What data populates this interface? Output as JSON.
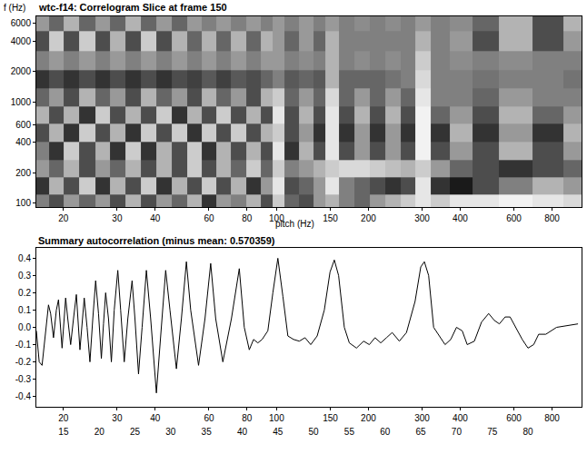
{
  "chart_data": [
    {
      "type": "heatmap",
      "title": "wtc-f14: Correlogram Slice at frame 150",
      "xlabel": "pitch (Hz)",
      "ylabel": "f (Hz)",
      "log": true,
      "grid": false,
      "x": [
        17,
        19,
        21,
        24,
        27,
        30,
        34,
        38,
        43,
        48,
        54,
        60,
        67,
        75,
        84,
        94,
        100,
        112,
        125,
        140,
        150,
        170,
        190,
        215,
        240,
        270,
        300,
        340,
        400,
        480,
        600,
        800,
        950
      ],
      "y": [
        100,
        150,
        220,
        330,
        500,
        750,
        1100,
        1700,
        2500,
        4000,
        6200
      ],
      "z": [
        [
          0.5,
          0.3,
          0.6,
          0.4,
          0.6,
          0.3,
          0.7,
          0.3,
          0.6,
          0.4,
          0.7,
          0.2,
          0.6,
          0.5,
          0.7,
          0.3,
          0.8,
          0.4,
          0.3,
          0.6,
          0.7,
          0.5,
          0.4,
          0.6,
          0.7,
          0.8,
          0.9,
          0.8,
          0.9,
          0.9,
          0.95,
          0.9,
          0.85
        ],
        [
          0.2,
          0.7,
          0.3,
          0.8,
          0.2,
          0.7,
          0.3,
          0.8,
          0.2,
          0.7,
          0.3,
          0.8,
          0.3,
          0.7,
          0.2,
          0.6,
          0.9,
          0.3,
          0.4,
          0.6,
          0.9,
          0.5,
          0.4,
          0.3,
          0.2,
          0.3,
          0.9,
          0.2,
          0.1,
          0.3,
          0.5,
          0.7,
          0.6
        ],
        [
          0.6,
          0.4,
          0.7,
          0.3,
          0.6,
          0.4,
          0.7,
          0.3,
          0.7,
          0.3,
          0.8,
          0.3,
          0.7,
          0.4,
          0.8,
          0.4,
          0.8,
          0.5,
          0.6,
          0.7,
          0.8,
          0.85,
          0.85,
          0.8,
          0.75,
          0.7,
          0.8,
          0.6,
          0.4,
          0.3,
          0.2,
          0.3,
          0.4
        ],
        [
          0.5,
          0.2,
          0.8,
          0.3,
          0.7,
          0.2,
          0.8,
          0.2,
          0.7,
          0.3,
          0.8,
          0.2,
          0.7,
          0.3,
          0.7,
          0.3,
          0.9,
          0.2,
          0.7,
          0.3,
          0.9,
          0.3,
          0.6,
          0.3,
          0.6,
          0.3,
          0.95,
          0.3,
          0.6,
          0.3,
          0.7,
          0.3,
          0.6
        ],
        [
          0.3,
          0.7,
          0.2,
          0.8,
          0.3,
          0.7,
          0.2,
          0.8,
          0.3,
          0.8,
          0.2,
          0.8,
          0.3,
          0.8,
          0.3,
          0.7,
          0.8,
          0.3,
          0.6,
          0.2,
          0.9,
          0.2,
          0.6,
          0.2,
          0.6,
          0.2,
          0.95,
          0.2,
          0.7,
          0.2,
          0.6,
          0.2,
          0.7
        ],
        [
          0.7,
          0.3,
          0.7,
          0.2,
          0.8,
          0.3,
          0.7,
          0.3,
          0.8,
          0.2,
          0.7,
          0.3,
          0.8,
          0.3,
          0.7,
          0.3,
          0.9,
          0.3,
          0.7,
          0.3,
          0.9,
          0.3,
          0.7,
          0.3,
          0.7,
          0.3,
          0.95,
          0.4,
          0.6,
          0.3,
          0.7,
          0.4,
          0.6
        ],
        [
          0.4,
          0.6,
          0.3,
          0.7,
          0.4,
          0.6,
          0.3,
          0.7,
          0.4,
          0.6,
          0.3,
          0.7,
          0.4,
          0.6,
          0.3,
          0.7,
          0.8,
          0.4,
          0.6,
          0.4,
          0.85,
          0.4,
          0.6,
          0.4,
          0.6,
          0.4,
          0.9,
          0.5,
          0.5,
          0.4,
          0.6,
          0.5,
          0.5
        ],
        [
          0.2,
          0.3,
          0.2,
          0.3,
          0.2,
          0.3,
          0.2,
          0.3,
          0.2,
          0.3,
          0.25,
          0.35,
          0.25,
          0.35,
          0.3,
          0.4,
          0.5,
          0.35,
          0.4,
          0.35,
          0.7,
          0.4,
          0.4,
          0.4,
          0.45,
          0.5,
          0.85,
          0.5,
          0.5,
          0.45,
          0.5,
          0.5,
          0.45
        ],
        [
          0.5,
          0.6,
          0.5,
          0.6,
          0.5,
          0.6,
          0.5,
          0.6,
          0.5,
          0.6,
          0.5,
          0.6,
          0.5,
          0.6,
          0.5,
          0.6,
          0.6,
          0.5,
          0.55,
          0.5,
          0.7,
          0.5,
          0.55,
          0.5,
          0.55,
          0.5,
          0.8,
          0.5,
          0.55,
          0.5,
          0.55,
          0.5,
          0.5
        ],
        [
          0.3,
          0.8,
          0.3,
          0.8,
          0.3,
          0.7,
          0.3,
          0.8,
          0.3,
          0.7,
          0.4,
          0.7,
          0.4,
          0.7,
          0.4,
          0.7,
          0.6,
          0.4,
          0.6,
          0.4,
          0.7,
          0.5,
          0.5,
          0.5,
          0.5,
          0.5,
          0.7,
          0.5,
          0.6,
          0.3,
          0.7,
          0.3,
          0.6
        ],
        [
          0.6,
          0.4,
          0.7,
          0.4,
          0.6,
          0.4,
          0.7,
          0.4,
          0.6,
          0.4,
          0.6,
          0.5,
          0.6,
          0.5,
          0.6,
          0.5,
          0.6,
          0.5,
          0.6,
          0.5,
          0.6,
          0.5,
          0.55,
          0.5,
          0.55,
          0.5,
          0.6,
          0.5,
          0.55,
          0.4,
          0.7,
          0.3,
          0.7
        ]
      ],
      "zlim": [
        0,
        1
      ],
      "xlim": [
        16.3,
        1000
      ],
      "ylim": [
        92,
        7000
      ],
      "xticks": [
        20,
        30,
        40,
        60,
        80,
        100,
        150,
        200,
        300,
        400,
        600,
        800
      ],
      "yticks": [
        100,
        200,
        400,
        600,
        1000,
        2000,
        4000,
        6000
      ]
    },
    {
      "type": "line",
      "title": "Summary autocorrelation (minus mean: 0.570359)",
      "color": "#000000",
      "grid": false,
      "x": [
        11.2,
        11.6,
        12.0,
        12.4,
        12.9,
        13.2,
        13.6,
        14.0,
        14.3,
        14.8,
        15.3,
        15.6,
        16.0,
        16.4,
        16.8,
        17.3,
        17.9,
        18.3,
        18.7,
        19.1,
        19.5,
        19.9,
        20.3,
        20.6,
        20.9,
        21.3,
        21.7,
        22.1,
        22.6,
        23.0,
        23.5,
        24.0,
        24.6,
        25.0,
        25.5,
        26.0,
        26.6,
        27.2,
        28.0,
        28.6,
        29.3,
        29.9,
        30.8,
        31.5,
        32.2,
        32.8,
        33.9,
        34.8,
        35.6,
        36.3,
        37.3,
        38.5,
        39.6,
        40.3,
        41.0,
        41.6,
        42.2,
        42.8,
        43.6,
        44.3,
        45.0,
        45.7,
        46.4,
        47.2,
        48.0,
        48.8,
        49.6,
        50.5,
        51.5,
        52.3,
        52.9,
        53.5,
        54.3,
        55.0,
        56.0,
        57.0,
        57.8,
        58.6,
        59.4,
        60.2,
        61.0,
        62.0,
        63.0,
        64.2,
        65.0,
        65.5,
        66.1,
        66.8,
        67.6,
        68.4,
        69.2,
        70.0,
        70.8,
        71.5,
        72.5,
        73.5,
        74.5,
        75.3,
        76.0,
        76.8,
        77.5,
        78.3,
        79.2,
        80.0,
        80.8,
        81.5,
        82.5,
        84.0,
        85.5,
        87.0
      ],
      "values": [
        -0.02,
        -0.2,
        -0.22,
        -0.05,
        0.13,
        0.08,
        -0.06,
        0.1,
        0.16,
        -0.12,
        0.17,
        0.05,
        -0.1,
        0.05,
        0.19,
        -0.13,
        0.17,
        0,
        -0.2,
        0.05,
        0.27,
        0.08,
        -0.18,
        0.02,
        0.2,
        0.05,
        -0.2,
        0.1,
        0.33,
        0.1,
        -0.2,
        0.05,
        0.27,
        0.05,
        -0.27,
        0,
        0.33,
        0.05,
        -0.38,
        -0.05,
        0.33,
        0.1,
        -0.24,
        0.05,
        0.38,
        0.1,
        -0.22,
        0.05,
        0.37,
        0.05,
        -0.2,
        0.05,
        0.34,
        0,
        -0.13,
        -0.07,
        -0.09,
        -0.07,
        -0.02,
        0.2,
        0.4,
        0.18,
        -0.05,
        -0.07,
        -0.08,
        -0.06,
        -0.1,
        -0.05,
        0.1,
        0.32,
        0.39,
        0.3,
        0,
        -0.09,
        -0.12,
        -0.08,
        -0.1,
        -0.06,
        -0.09,
        -0.06,
        -0.03,
        -0.08,
        -0.03,
        0.15,
        0.35,
        0.38,
        0.3,
        0,
        -0.05,
        -0.1,
        -0.07,
        0,
        -0.02,
        -0.1,
        -0.08,
        0.03,
        0.08,
        0.04,
        0.02,
        0.06,
        0.06,
        0,
        -0.07,
        -0.12,
        -0.1,
        -0.04,
        -0.04,
        0,
        0.01,
        0.02
      ],
      "xlim": [
        11.2,
        87.5
      ],
      "xticks": [
        15,
        20,
        25,
        30,
        35,
        40,
        45,
        50,
        55,
        60,
        65,
        70,
        75,
        80
      ],
      "x2lim": [
        16.3,
        1000
      ],
      "x2ticks": [
        20,
        30,
        40,
        60,
        80,
        100,
        150,
        200,
        300,
        400,
        600,
        800
      ],
      "ylim": [
        -0.46,
        0.46
      ],
      "yticks": [
        -0.4,
        -0.3,
        -0.2,
        -0.1,
        {
          "value": 0,
          "label": "0.0"
        },
        0.1,
        0.2,
        0.3,
        0.4
      ]
    }
  ]
}
